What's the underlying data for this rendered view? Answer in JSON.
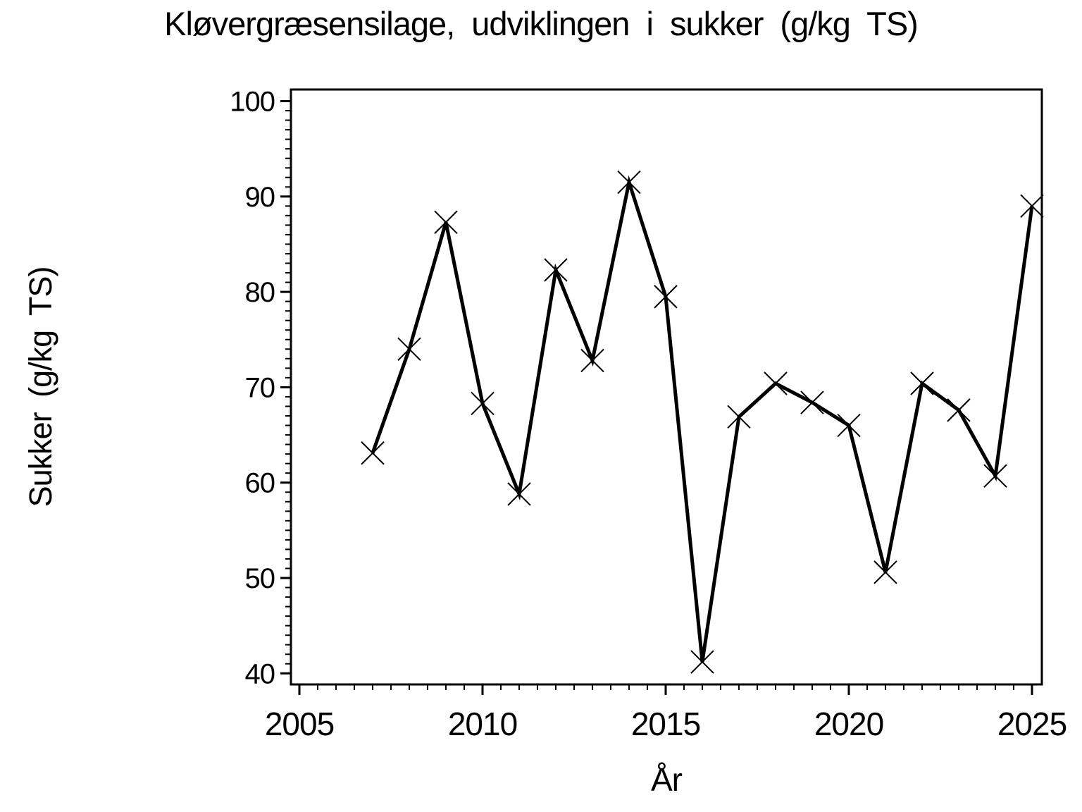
{
  "title": "Kløvergræsensilage, udviklingen i sukker (g/kg TS)",
  "chart_data": {
    "type": "line",
    "title": "Kløvergræsensilage, udviklingen i sukker (g/kg TS)",
    "xlabel": "År",
    "ylabel": "Sukker (g/kg TS)",
    "x": [
      2007,
      2008,
      2009,
      2010,
      2011,
      2012,
      2013,
      2014,
      2015,
      2016,
      2017,
      2018,
      2019,
      2020,
      2021,
      2022,
      2023,
      2024,
      2025
    ],
    "values": [
      63.1,
      74.0,
      87.3,
      68.3,
      58.8,
      82.3,
      72.8,
      91.5,
      79.5,
      41.2,
      66.9,
      70.4,
      68.4,
      66.0,
      50.6,
      70.4,
      67.6,
      60.7,
      89.0
    ],
    "xticks": [
      2005,
      2010,
      2015,
      2020,
      2025
    ],
    "yticks": [
      40,
      50,
      60,
      70,
      80,
      90,
      100
    ],
    "x_minor_step": 0.5,
    "y_minor_step": 1,
    "xlim": [
      2004.77,
      2025.27
    ],
    "ylim": [
      38.8,
      101.2
    ],
    "grid": false,
    "legend": false,
    "line_color": "#000000",
    "background_color": "#ffffff",
    "marker": "x"
  }
}
